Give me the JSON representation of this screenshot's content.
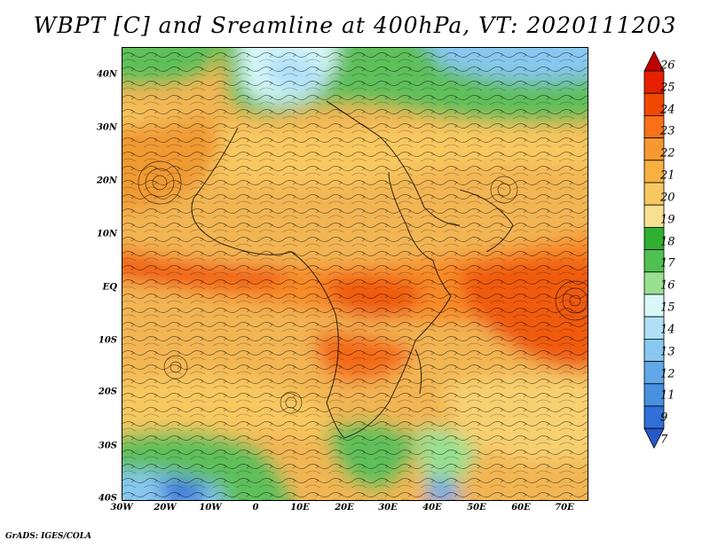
{
  "title": "WBPT [C] and Sreamline at 400hPa, VT: 2020111203",
  "credit": "GrADS: IGES/COLA",
  "map": {
    "lat_labels": [
      "40N",
      "30N",
      "20N",
      "10N",
      "EQ",
      "10S",
      "20S",
      "30S",
      "40S"
    ],
    "lon_labels": [
      "30W",
      "20W",
      "10W",
      "0",
      "10E",
      "20E",
      "30E",
      "40E",
      "50E",
      "60E",
      "70E"
    ],
    "lat_range": [
      -40,
      45
    ],
    "lon_range": [
      -30,
      75
    ]
  },
  "colorbar": {
    "labels": [
      "26",
      "25",
      "24",
      "23",
      "22",
      "21",
      "20",
      "19",
      "18",
      "17",
      "16",
      "15",
      "14",
      "13",
      "12",
      "11",
      "9",
      "7"
    ],
    "colors": [
      "#c00000",
      "#e82000",
      "#f04800",
      "#f87018",
      "#f89830",
      "#f8b040",
      "#f8c860",
      "#f8e090",
      "#30b030",
      "#50c050",
      "#98e090",
      "#d8f8f8",
      "#b0e0f8",
      "#88c8f0",
      "#60a8e8",
      "#4890e0",
      "#3070d8",
      "#2858c8"
    ]
  }
}
